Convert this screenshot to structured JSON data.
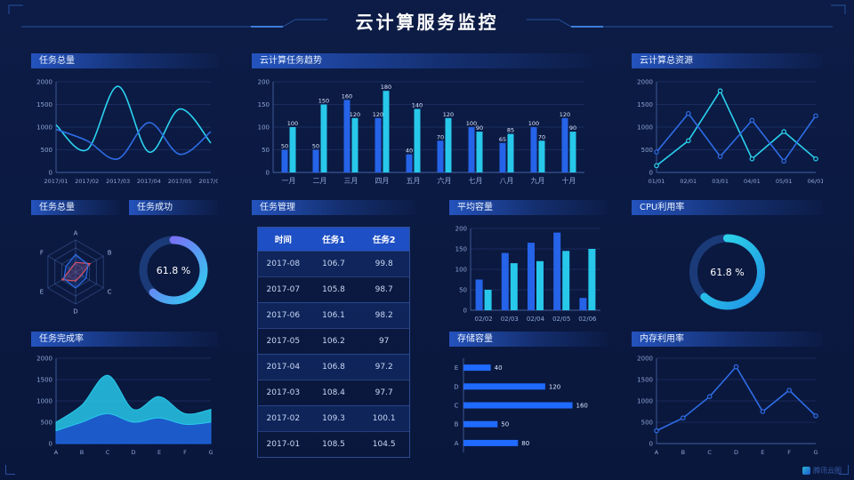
{
  "header": {
    "title": "云计算服务监控"
  },
  "footer": {
    "logo": "腾讯云图"
  },
  "colors": {
    "background": "#0b1a42",
    "blue": "#2563e8",
    "cyan": "#2bd2f0",
    "purple": "#8a5cf6",
    "red": "#ff4d4f",
    "axis": "#3a5ca8",
    "tick_text": "#8da5d6"
  },
  "chart_data": [
    {
      "id": "task-total",
      "type": "line",
      "title": "任务总量",
      "x": [
        "2017/01",
        "2017/02",
        "2017/03",
        "2017/04",
        "2017/05",
        "2017/06"
      ],
      "ylim": [
        0,
        2000
      ],
      "yticks": [
        0,
        500,
        1000,
        1500,
        2000
      ],
      "series": [
        {
          "color": "#2bd2f0",
          "smooth": true,
          "values": [
            1050,
            500,
            1900,
            450,
            1400,
            650
          ]
        },
        {
          "color": "#2e6de6",
          "smooth": true,
          "values": [
            950,
            700,
            300,
            1100,
            400,
            900
          ]
        }
      ]
    },
    {
      "id": "trend",
      "type": "bar",
      "title": "云计算任务趋势",
      "x": [
        "一月",
        "二月",
        "三月",
        "四月",
        "五月",
        "六月",
        "七月",
        "八月",
        "九月",
        "十月"
      ],
      "ylim": [
        0,
        200
      ],
      "yticks": [
        0,
        50,
        100,
        150,
        200
      ],
      "labels": true,
      "xfs": 8,
      "bw": 7,
      "series": [
        {
          "color": "#2563e8",
          "values": [
            50,
            50,
            160,
            120,
            40,
            70,
            100,
            65,
            100,
            120
          ]
        },
        {
          "color": "#27c8ea",
          "values": [
            100,
            150,
            120,
            180,
            140,
            120,
            90,
            85,
            70,
            90
          ]
        }
      ]
    },
    {
      "id": "total-res",
      "type": "line",
      "title": "云计算总资源",
      "x": [
        "01/01",
        "02/01",
        "03/01",
        "04/01",
        "05/01",
        "06/01"
      ],
      "ylim": [
        0,
        2000
      ],
      "yticks": [
        0,
        500,
        1000,
        1500,
        2000
      ],
      "series": [
        {
          "color": "#2bd2f0",
          "markers": true,
          "values": [
            150,
            700,
            1800,
            300,
            900,
            300
          ]
        },
        {
          "color": "#2e6de6",
          "markers": true,
          "values": [
            450,
            1300,
            350,
            1150,
            250,
            1250
          ]
        }
      ]
    },
    {
      "id": "radar",
      "type": "radar",
      "title": "任务总量",
      "axes": [
        "A",
        "B",
        "C",
        "D",
        "E",
        "F"
      ],
      "max": 100,
      "series": [
        {
          "color": "#ff4d4f",
          "values": [
            30,
            52,
            20,
            28,
            48,
            18
          ]
        },
        {
          "color": "#2e6de6",
          "values": [
            55,
            45,
            38,
            50,
            42,
            35
          ]
        }
      ]
    },
    {
      "id": "success",
      "type": "donut",
      "title": "任务成功",
      "value": 61.8,
      "label": "61.8 %",
      "colors": [
        "#8a5cf6",
        "#2bd2f0"
      ],
      "track": "#1b3a78"
    },
    {
      "id": "task-table",
      "type": "table",
      "title": "任务管理",
      "headers": [
        "时间",
        "任务1",
        "任务2"
      ],
      "rows": [
        [
          "2017-08",
          "106.7",
          "99.8"
        ],
        [
          "2017-07",
          "105.8",
          "98.7"
        ],
        [
          "2017-06",
          "106.1",
          "98.2"
        ],
        [
          "2017-05",
          "106.2",
          "97"
        ],
        [
          "2017-04",
          "106.8",
          "97.2"
        ],
        [
          "2017-03",
          "108.4",
          "97.7"
        ],
        [
          "2017-02",
          "109.3",
          "100.1"
        ],
        [
          "2017-01",
          "108.5",
          "104.5"
        ]
      ]
    },
    {
      "id": "avg-cap",
      "type": "bar",
      "title": "平均容量",
      "x": [
        "02/02",
        "02/03",
        "02/04",
        "02/05",
        "02/06"
      ],
      "ylim": [
        0,
        200
      ],
      "yticks": [
        0,
        50,
        100,
        150,
        200
      ],
      "labels": false,
      "xfs": 7,
      "bw": 8,
      "series": [
        {
          "color": "#2563e8",
          "values": [
            75,
            140,
            165,
            190,
            30
          ]
        },
        {
          "color": "#27c8ea",
          "values": [
            50,
            115,
            120,
            145,
            150
          ]
        }
      ]
    },
    {
      "id": "cpu",
      "type": "donut",
      "title": "CPU利用率",
      "value": 61.8,
      "label": "61.8 %",
      "colors": [
        "#2fe0e8",
        "#1f8fe6"
      ],
      "track": "#1b3a78"
    },
    {
      "id": "completion",
      "type": "area",
      "title": "任务完成率",
      "x": [
        "A",
        "B",
        "C",
        "D",
        "E",
        "F",
        "G"
      ],
      "ylim": [
        0,
        2000
      ],
      "yticks": [
        0,
        500,
        1000,
        1500,
        2000
      ],
      "series": [
        {
          "color": "#1f66e0",
          "values": [
            300,
            500,
            700,
            500,
            600,
            450,
            500
          ]
        },
        {
          "color": "#27c8ea",
          "values": [
            200,
            400,
            900,
            300,
            500,
            250,
            300
          ]
        }
      ]
    },
    {
      "id": "storage",
      "type": "hbar",
      "title": "存储容量",
      "categories": [
        "E",
        "D",
        "C",
        "B",
        "A"
      ],
      "values": [
        40,
        120,
        160,
        50,
        80
      ],
      "xmax": 175,
      "color": "#1f6bff"
    },
    {
      "id": "memory",
      "type": "line",
      "title": "内存利用率",
      "x": [
        "A",
        "B",
        "C",
        "D",
        "E",
        "F",
        "G"
      ],
      "ylim": [
        0,
        2000
      ],
      "yticks": [
        0,
        500,
        1000,
        1500,
        2000
      ],
      "series": [
        {
          "color": "#2e6de6",
          "markers": true,
          "values": [
            300,
            600,
            1100,
            1800,
            750,
            1250,
            650
          ]
        }
      ]
    }
  ]
}
